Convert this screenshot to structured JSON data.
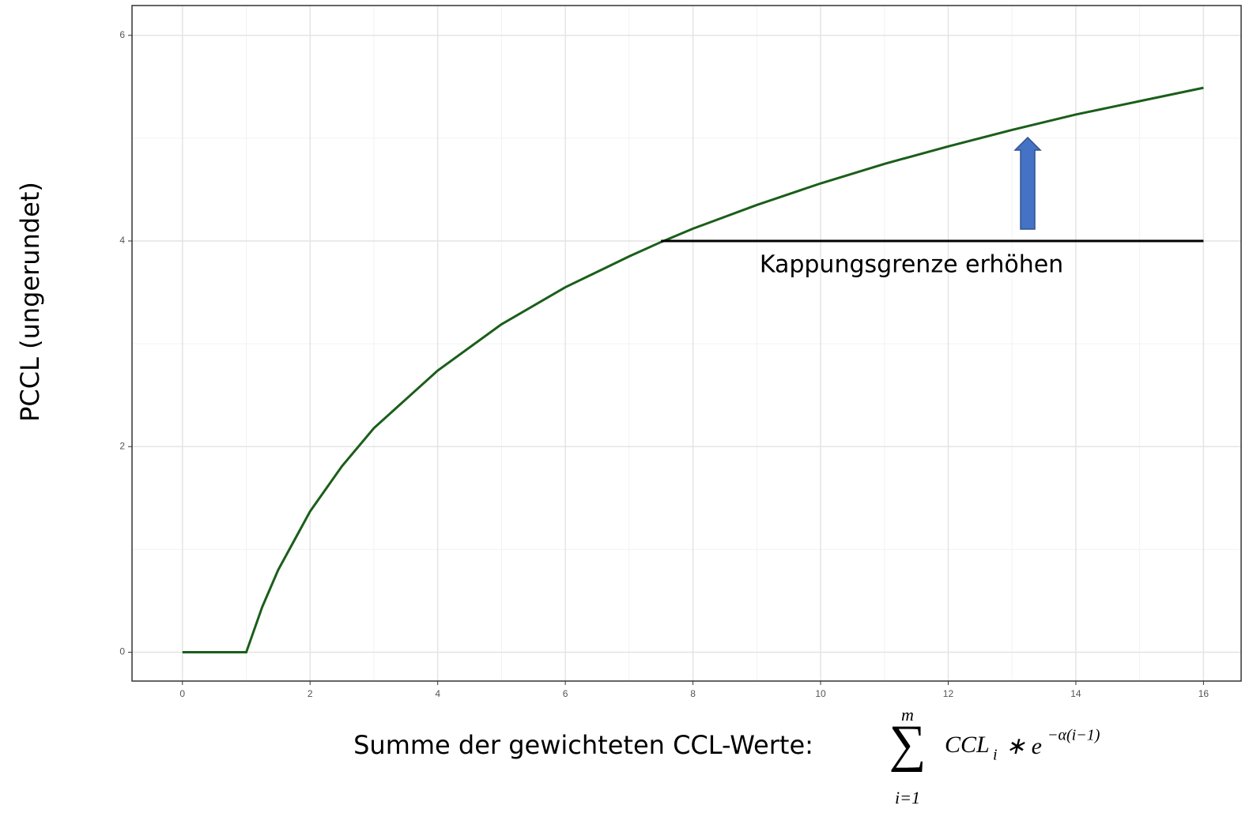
{
  "chart_data": {
    "type": "line",
    "y_label": "PCCL (ungerundet)",
    "x_label": "Summe der gewichteten CCL-Werte:",
    "formula": {
      "sum": "∑",
      "upper": "m",
      "lower": "i=1",
      "term": "CCL",
      "term_sub": "i",
      "op": "∗ e",
      "exponent": "−α(i−1)"
    },
    "annotation": "Kappungsgrenze erhöhen",
    "xlim": [
      -0.79,
      16.59
    ],
    "ylim": [
      -0.28,
      6.29
    ],
    "xticks": [
      0,
      2,
      4,
      6,
      8,
      10,
      12,
      14,
      16
    ],
    "yticks": [
      0,
      2,
      4,
      6
    ],
    "xminorticks": [
      1,
      3,
      5,
      7,
      9,
      11,
      13,
      15
    ],
    "yminorticks": [
      1,
      3,
      5
    ],
    "grid": true,
    "series": [
      {
        "color": "#1a5e1a",
        "x": [
          0,
          1,
          1.25,
          1.5,
          2,
          2.5,
          3,
          4,
          5,
          6,
          7,
          7.5,
          8,
          9,
          10,
          11,
          12,
          13,
          14,
          15,
          16
        ],
        "values": [
          0,
          0,
          0.44,
          0.8,
          1.37,
          1.81,
          2.18,
          2.74,
          3.19,
          3.55,
          3.85,
          3.99,
          4.12,
          4.35,
          4.56,
          4.75,
          4.92,
          5.08,
          5.23,
          5.36,
          5.49
        ]
      },
      {
        "color": "#000000",
        "x": [
          7.5,
          16
        ],
        "values": [
          4,
          4
        ]
      }
    ]
  }
}
